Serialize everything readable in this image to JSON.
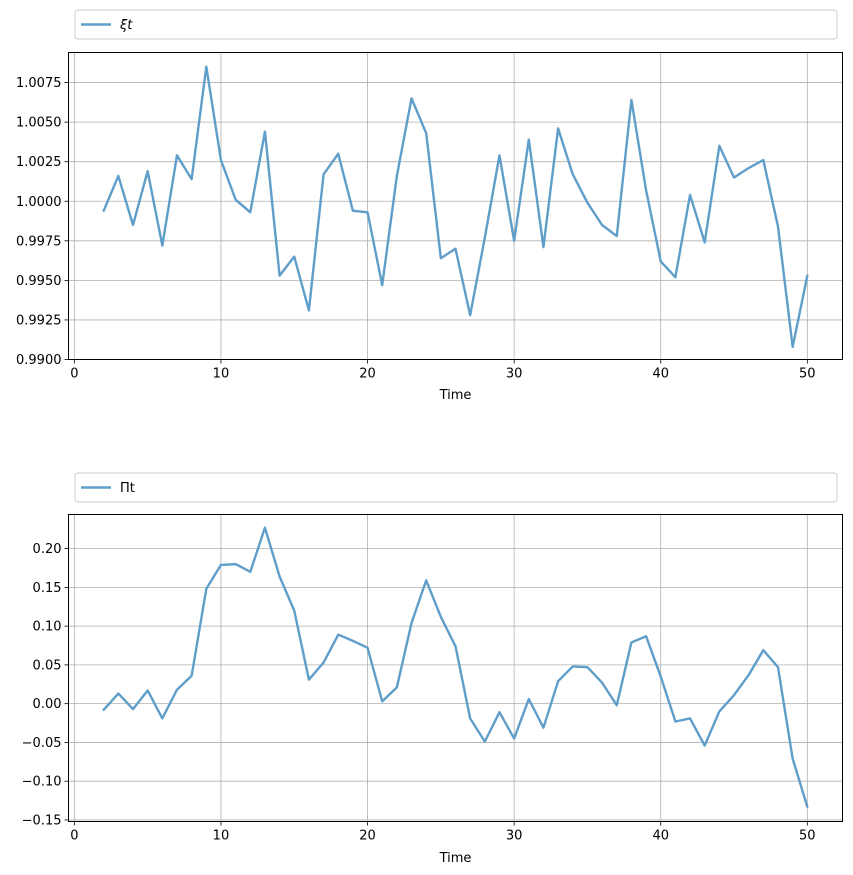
{
  "style": {
    "line_color": "#5f9ec9",
    "grid_color": "#b0b0b0",
    "axis_color": "#000000"
  },
  "chart_data": [
    {
      "type": "line",
      "xlabel": "Time",
      "ylabel": "",
      "xlim": [
        -0.4,
        52.4
      ],
      "ylim": [
        0.99,
        1.0094
      ],
      "xticks": [
        0,
        10,
        20,
        30,
        40,
        50
      ],
      "yticks": [
        0.99,
        0.9925,
        0.995,
        0.9975,
        1.0,
        1.0025,
        1.005,
        1.0075
      ],
      "ytick_labels": [
        "0.9900",
        "0.9925",
        "0.9950",
        "0.9975",
        "1.0000",
        "1.0025",
        "1.0050",
        "1.0075"
      ],
      "grid": true,
      "legend": "above",
      "series": [
        {
          "name": "ξt",
          "x": [
            2,
            3,
            4,
            5,
            6,
            7,
            8,
            9,
            10,
            11,
            12,
            13,
            14,
            15,
            16,
            17,
            18,
            19,
            20,
            21,
            22,
            23,
            24,
            25,
            26,
            27,
            28,
            29,
            30,
            31,
            32,
            33,
            34,
            35,
            36,
            37,
            38,
            39,
            40,
            41,
            42,
            43,
            44,
            45,
            46,
            47,
            48,
            49,
            50
          ],
          "values": [
            0.9994,
            1.0016,
            0.9985,
            1.0019,
            0.9972,
            1.0029,
            1.0014,
            1.0085,
            1.0026,
            1.0001,
            0.9993,
            1.0044,
            0.9953,
            0.9965,
            0.9931,
            1.0017,
            1.003,
            0.9994,
            0.9993,
            0.9947,
            1.0016,
            1.0065,
            1.0043,
            0.9964,
            0.997,
            0.9928,
            0.9977,
            1.0029,
            0.9975,
            1.0039,
            0.9971,
            1.0046,
            1.0017,
            0.9999,
            0.9985,
            0.9978,
            1.0064,
            1.0007,
            0.9962,
            0.9952,
            1.0004,
            0.9974,
            1.0035,
            1.0015,
            1.0021,
            1.0026,
            0.9984,
            0.9908,
            0.9953
          ]
        }
      ]
    },
    {
      "type": "line",
      "xlabel": "Time",
      "ylabel": "",
      "xlim": [
        -0.4,
        52.4
      ],
      "ylim": [
        -0.152,
        0.244
      ],
      "xticks": [
        0,
        10,
        20,
        30,
        40,
        50
      ],
      "yticks": [
        -0.15,
        -0.1,
        -0.05,
        0.0,
        0.05,
        0.1,
        0.15,
        0.2
      ],
      "ytick_labels": [
        "−0.15",
        "−0.10",
        "−0.05",
        "0.00",
        "0.05",
        "0.10",
        "0.15",
        "0.20"
      ],
      "grid": true,
      "legend": "above",
      "series": [
        {
          "name": "Πt",
          "x": [
            2,
            3,
            4,
            5,
            6,
            7,
            8,
            9,
            10,
            11,
            12,
            13,
            14,
            15,
            16,
            17,
            18,
            19,
            20,
            21,
            22,
            23,
            24,
            25,
            26,
            27,
            28,
            29,
            30,
            31,
            32,
            33,
            34,
            35,
            36,
            37,
            38,
            39,
            40,
            41,
            42,
            43,
            44,
            45,
            46,
            47,
            48,
            49,
            50
          ],
          "values": [
            -0.008,
            0.013,
            -0.007,
            0.017,
            -0.019,
            0.018,
            0.036,
            0.148,
            0.179,
            0.18,
            0.17,
            0.227,
            0.164,
            0.12,
            0.031,
            0.053,
            0.089,
            0.081,
            0.072,
            0.003,
            0.021,
            0.104,
            0.159,
            0.112,
            0.074,
            -0.019,
            -0.049,
            -0.011,
            -0.045,
            0.006,
            -0.031,
            0.029,
            0.048,
            0.047,
            0.027,
            -0.002,
            0.079,
            0.087,
            0.035,
            -0.023,
            -0.019,
            -0.054,
            -0.01,
            0.011,
            0.037,
            0.069,
            0.047,
            -0.071,
            -0.133
          ]
        }
      ]
    }
  ]
}
